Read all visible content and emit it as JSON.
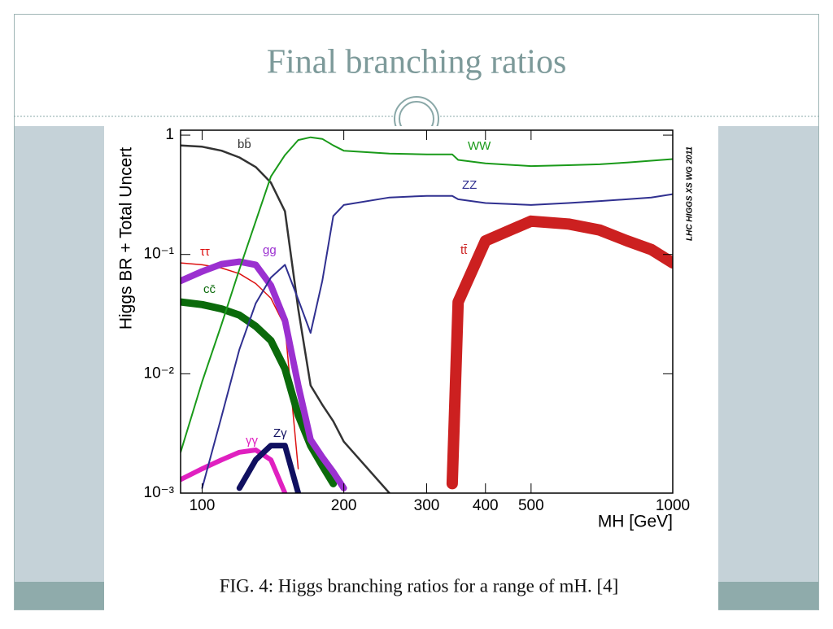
{
  "slide": {
    "title": "Final branching ratios",
    "caption": "FIG. 4: Higgs branching ratios for a range of mH. [4]"
  },
  "chart_data": {
    "type": "line",
    "x_label": "MH [GeV]",
    "y_label": "Higgs BR + Total Uncert",
    "annotation": "LHC HIGGS XS WG 2011",
    "x_log": true,
    "y_log": true,
    "xlim": [
      90,
      1000
    ],
    "ylim": [
      0.001,
      1.1
    ],
    "xticks": [
      100,
      200,
      300,
      400,
      500,
      1000
    ],
    "yticks": [
      {
        "value": 1,
        "label": "1"
      },
      {
        "value": 0.1,
        "label": "10⁻¹"
      },
      {
        "value": 0.01,
        "label": "10⁻²"
      },
      {
        "value": 0.001,
        "label": "10⁻³"
      }
    ],
    "x": [
      90,
      100,
      110,
      120,
      130,
      140,
      150,
      160,
      170,
      180,
      190,
      200,
      250,
      300,
      340,
      350,
      400,
      500,
      600,
      700,
      800,
      900,
      1000
    ],
    "series": [
      {
        "name": "bb̄",
        "color": "#333333",
        "values": [
          0.82,
          0.8,
          0.74,
          0.65,
          0.54,
          0.4,
          0.23,
          0.035,
          0.008,
          0.0055,
          0.004,
          0.0027,
          0.001,
          null,
          null,
          null,
          null,
          null,
          null,
          null,
          null,
          null,
          null
        ]
      },
      {
        "name": "ττ",
        "color": "#dd1111",
        "values": [
          0.085,
          0.082,
          0.077,
          0.069,
          0.057,
          0.043,
          0.025,
          0.0016,
          null,
          null,
          null,
          null,
          null,
          null,
          null,
          null,
          null,
          null,
          null,
          null,
          null,
          null,
          null
        ]
      },
      {
        "name": "cc̄",
        "color": "#0b6a0b",
        "values": [
          0.04,
          0.038,
          0.035,
          0.031,
          0.025,
          0.019,
          0.011,
          0.0045,
          0.0025,
          0.0017,
          0.0012,
          null,
          null,
          null,
          null,
          null,
          null,
          null,
          null,
          null,
          null,
          null,
          null
        ]
      },
      {
        "name": "gg",
        "color": "#9b30d0",
        "values": [
          0.06,
          0.072,
          0.083,
          0.087,
          0.082,
          0.055,
          0.028,
          0.008,
          0.0028,
          0.002,
          0.0015,
          0.0011,
          null,
          null,
          null,
          null,
          null,
          null,
          null,
          null,
          null,
          null,
          null
        ]
      },
      {
        "name": "γγ",
        "color": "#e020c0",
        "values": [
          0.0013,
          0.0016,
          0.0019,
          0.0022,
          0.0023,
          0.0019,
          0.001,
          null,
          null,
          null,
          null,
          null,
          null,
          null,
          null,
          null,
          null,
          null,
          null,
          null,
          null,
          null,
          null
        ]
      },
      {
        "name": "Zγ",
        "color": "#101060",
        "values": [
          null,
          null,
          null,
          0.0011,
          0.0019,
          0.0025,
          0.0025,
          0.001,
          null,
          null,
          null,
          null,
          null,
          null,
          null,
          null,
          null,
          null,
          null,
          null,
          null,
          null,
          null
        ]
      },
      {
        "name": "WW",
        "color": "#1a9a1a",
        "values": [
          0.0022,
          0.0086,
          0.026,
          0.075,
          0.19,
          0.45,
          0.68,
          0.91,
          0.96,
          0.93,
          0.82,
          0.74,
          0.7,
          0.69,
          0.69,
          0.62,
          0.58,
          0.55,
          0.56,
          0.57,
          0.59,
          0.61,
          0.63
        ]
      },
      {
        "name": "ZZ",
        "color": "#303090",
        "values": [
          null,
          0.0011,
          0.0044,
          0.016,
          0.039,
          0.064,
          0.082,
          0.042,
          0.022,
          0.06,
          0.21,
          0.26,
          0.3,
          0.31,
          0.31,
          0.29,
          0.27,
          0.26,
          0.27,
          0.28,
          0.29,
          0.3,
          0.32
        ]
      },
      {
        "name": "tt̄",
        "color": "#cc2020",
        "values": [
          null,
          null,
          null,
          null,
          null,
          null,
          null,
          null,
          null,
          null,
          null,
          null,
          null,
          null,
          0.0012,
          0.04,
          0.13,
          0.19,
          0.18,
          0.16,
          0.13,
          0.11,
          0.085
        ]
      }
    ]
  }
}
